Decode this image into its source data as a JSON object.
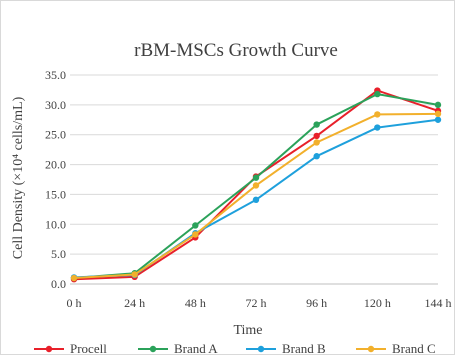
{
  "chart_data": {
    "type": "line",
    "title": "rBM-MSCs Growth Curve",
    "xlabel": "Time",
    "ylabel": "Cell Density (×10⁴ cells/mL)",
    "categories": [
      "0 h",
      "24 h",
      "48 h",
      "72 h",
      "96 h",
      "120 h",
      "144 h"
    ],
    "ylim": [
      0,
      35
    ],
    "yticks": [
      "0.0",
      "5.0",
      "10.0",
      "15.0",
      "20.0",
      "25.0",
      "30.0",
      "35.0"
    ],
    "grid": true,
    "legend_position": "bottom",
    "series": [
      {
        "name": "Procell",
        "color": "#e8202a",
        "values": [
          0.8,
          1.2,
          7.8,
          18.0,
          24.8,
          32.4,
          29.0
        ]
      },
      {
        "name": "Brand A",
        "color": "#2ba25a",
        "values": [
          1.0,
          1.8,
          9.8,
          17.8,
          26.7,
          31.8,
          30.0
        ]
      },
      {
        "name": "Brand B",
        "color": "#1ea0dc",
        "values": [
          1.1,
          1.5,
          8.5,
          14.1,
          21.4,
          26.2,
          27.5
        ]
      },
      {
        "name": "Brand C",
        "color": "#f2b02c",
        "values": [
          1.0,
          1.6,
          8.3,
          16.5,
          23.7,
          28.4,
          28.5
        ]
      }
    ]
  }
}
